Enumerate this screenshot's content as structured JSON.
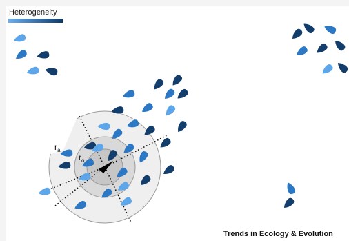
{
  "legend": {
    "title": "Heterogeneity",
    "gradient": [
      "#6aaef0",
      "#0b3a6a"
    ]
  },
  "diagram": {
    "zone_colors": {
      "outer": "#efefef",
      "middle": "#d9d9d9",
      "inner": "#c6c6c6",
      "stroke": "#9a9a9a"
    },
    "radius_labels": [
      {
        "main": "r",
        "sub": "a"
      },
      {
        "main": "r",
        "sub": "o"
      },
      {
        "main": "r",
        "sub": "r"
      }
    ],
    "fish_colors": {
      "light": "#5ea6ea",
      "mid": "#2c78c4",
      "dark": "#133d6a"
    }
  },
  "footer": {
    "journal": "Trends in Ecology & Evolution"
  }
}
